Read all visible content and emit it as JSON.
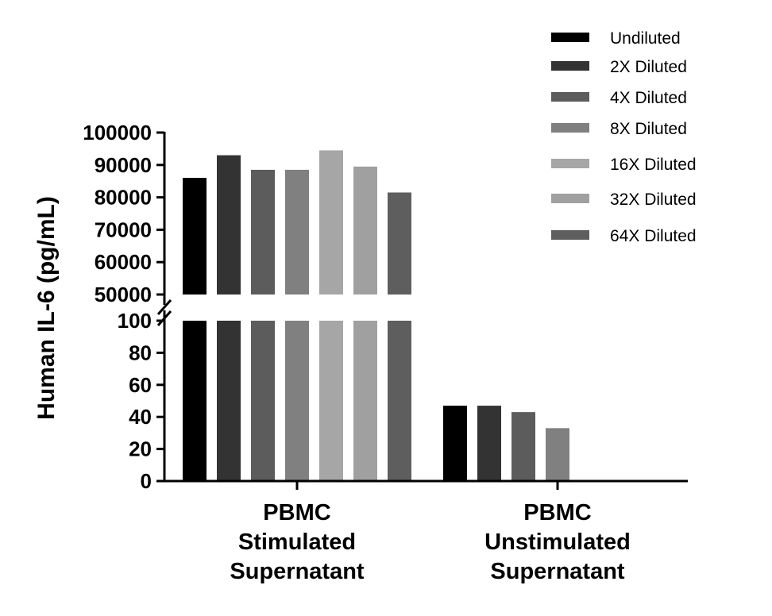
{
  "chart_data": {
    "type": "bar",
    "ylabel": "Human IL-6 (pg/mL)",
    "xlabel": "",
    "categories": [
      [
        "PBMC",
        "Stimulated",
        "Supernatant"
      ],
      [
        "PBMC",
        "Unstimulated",
        "Supernatant"
      ]
    ],
    "axis_break": {
      "lower_range": [
        0,
        100
      ],
      "lower_ticks": [
        "0",
        "20",
        "40",
        "60",
        "80",
        "100"
      ],
      "upper_range": [
        50000,
        100000
      ],
      "upper_ticks": [
        "50000",
        "60000",
        "70000",
        "80000",
        "90000",
        "100000"
      ]
    },
    "series": [
      {
        "name": "Undiluted",
        "color": "#000000",
        "values": [
          86000,
          47
        ]
      },
      {
        "name": "2X Diluted",
        "color": "#333333",
        "values": [
          93000,
          47
        ]
      },
      {
        "name": "4X Diluted",
        "color": "#5c5c5c",
        "values": [
          88500,
          43
        ]
      },
      {
        "name": "8X Diluted",
        "color": "#808080",
        "values": [
          88500,
          33
        ]
      },
      {
        "name": "16X Diluted",
        "color": "#a6a6a6",
        "values": [
          94500,
          null
        ]
      },
      {
        "name": "32X Diluted",
        "color": "#a0a0a0",
        "values": [
          89500,
          null
        ]
      },
      {
        "name": "64X Diluted",
        "color": "#5e5e5e",
        "values": [
          81500,
          null
        ]
      }
    ],
    "legend": "top-right",
    "grid": false
  }
}
